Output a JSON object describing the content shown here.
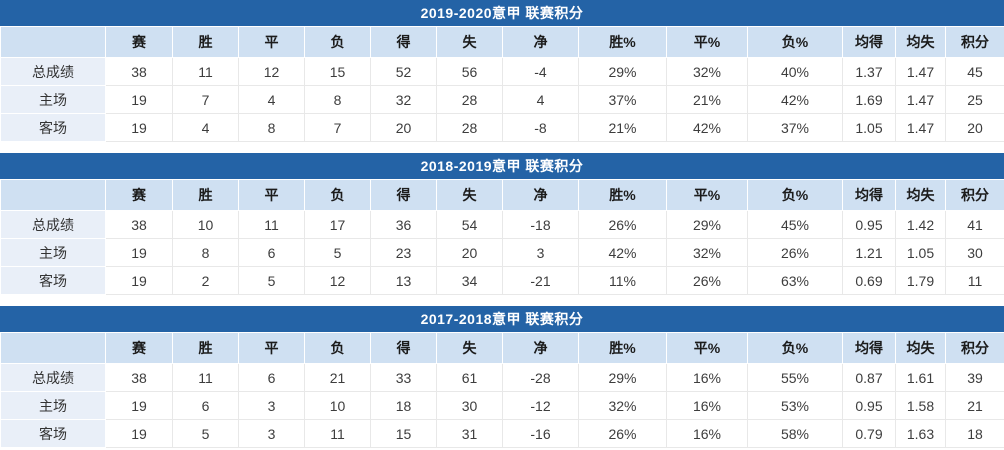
{
  "colors": {
    "title_bar_bg": "#2463a6",
    "title_text": "#ffffff",
    "header_row_bg": "#cfe0f2",
    "row_label_bg": "#e9eff8",
    "win_pct_bg": "#f7dcd2",
    "draw_pct_bg": "#faecd8",
    "loss_pct_bg": "#e4f1da",
    "avg_for_bg": "#e4f1da",
    "avg_against_bg": "#d5ebf2",
    "points_bg": "#fcf9d2",
    "cell_border": "#e8e8e8"
  },
  "columns": [
    "赛",
    "胜",
    "平",
    "负",
    "得",
    "失",
    "净",
    "胜%",
    "平%",
    "负%",
    "均得",
    "均失",
    "积分"
  ],
  "tables": [
    {
      "title": "2019-2020意甲 联赛积分",
      "rows": [
        {
          "label": "总成绩",
          "values": [
            "38",
            "11",
            "12",
            "15",
            "52",
            "56",
            "-4",
            "29%",
            "32%",
            "40%",
            "1.37",
            "1.47",
            "45"
          ]
        },
        {
          "label": "主场",
          "values": [
            "19",
            "7",
            "4",
            "8",
            "32",
            "28",
            "4",
            "37%",
            "21%",
            "42%",
            "1.69",
            "1.47",
            "25"
          ]
        },
        {
          "label": "客场",
          "values": [
            "19",
            "4",
            "8",
            "7",
            "20",
            "28",
            "-8",
            "21%",
            "42%",
            "37%",
            "1.05",
            "1.47",
            "20"
          ]
        }
      ]
    },
    {
      "title": "2018-2019意甲 联赛积分",
      "rows": [
        {
          "label": "总成绩",
          "values": [
            "38",
            "10",
            "11",
            "17",
            "36",
            "54",
            "-18",
            "26%",
            "29%",
            "45%",
            "0.95",
            "1.42",
            "41"
          ]
        },
        {
          "label": "主场",
          "values": [
            "19",
            "8",
            "6",
            "5",
            "23",
            "20",
            "3",
            "42%",
            "32%",
            "26%",
            "1.21",
            "1.05",
            "30"
          ]
        },
        {
          "label": "客场",
          "values": [
            "19",
            "2",
            "5",
            "12",
            "13",
            "34",
            "-21",
            "11%",
            "26%",
            "63%",
            "0.69",
            "1.79",
            "11"
          ]
        }
      ]
    },
    {
      "title": "2017-2018意甲 联赛积分",
      "rows": [
        {
          "label": "总成绩",
          "values": [
            "38",
            "11",
            "6",
            "21",
            "33",
            "61",
            "-28",
            "29%",
            "16%",
            "55%",
            "0.87",
            "1.61",
            "39"
          ]
        },
        {
          "label": "主场",
          "values": [
            "19",
            "6",
            "3",
            "10",
            "18",
            "30",
            "-12",
            "32%",
            "16%",
            "53%",
            "0.95",
            "1.58",
            "21"
          ]
        },
        {
          "label": "客场",
          "values": [
            "19",
            "5",
            "3",
            "11",
            "15",
            "31",
            "-16",
            "26%",
            "16%",
            "58%",
            "0.79",
            "1.63",
            "18"
          ]
        }
      ]
    }
  ]
}
